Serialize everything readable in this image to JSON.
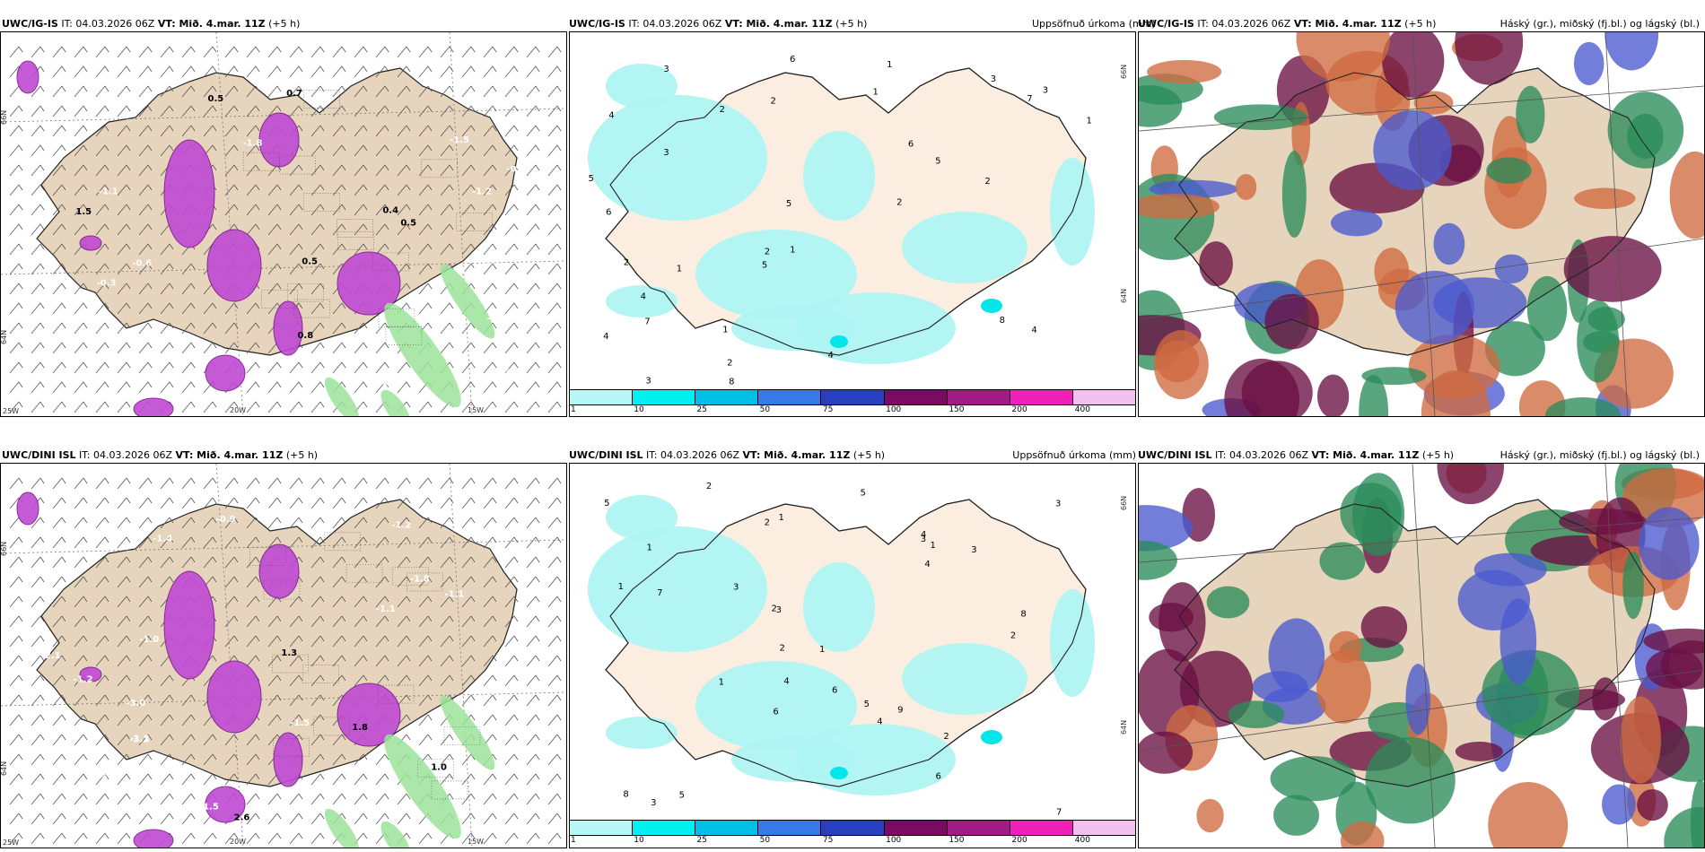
{
  "colors": {
    "land": "#e6d4bc",
    "land_light": "#fbeee0",
    "precip_light": "#aef4f2",
    "precip_mid": "#00e6ea",
    "snow_pink": "#c04ad4",
    "rain_green": "#9be39a",
    "cloud_high": "#6a1042",
    "cloud_mid": "#4a5ad0",
    "cloud_low": "#2a8c5a",
    "cloud_orange": "#cf6a40"
  },
  "scale": {
    "labels": [
      "1",
      "10",
      "25",
      "50",
      "75",
      "100",
      "150",
      "200",
      "400"
    ],
    "colors": [
      "#b4f8f8",
      "#00f0f0",
      "#00c0e8",
      "#3878e8",
      "#2840c0",
      "#7a0b62",
      "#a01a88",
      "#f020b8",
      "#f4c0f0"
    ]
  },
  "panels": [
    {
      "prefix": "UWC/IG-IS",
      "it_label": "IT:",
      "it_value": "04.03.2026 06Z",
      "vt_label": "VT: Mið. 4.mar. 11Z",
      "plus": "(+5 h)",
      "right": "",
      "lat_labels": [
        "66N",
        "64N"
      ],
      "lon_labels": [
        "25W",
        "20W",
        "15W"
      ],
      "values": [
        "-1.7",
        "-1.3",
        "-1.5",
        "-1.2",
        "-1.8",
        "-1.0",
        "-0.8",
        "-0.6",
        "0.5",
        "-1.6",
        "0.7",
        "0.4",
        "0.5",
        "-2.3",
        "0.8",
        "-1.1",
        "-0.3",
        "0.5",
        "-1.4",
        "1.5"
      ]
    },
    {
      "prefix": "UWC/IG-IS",
      "it_label": "IT:",
      "it_value": "04.03.2026 06Z",
      "vt_label": "VT: Mið. 4.mar. 11Z",
      "plus": "(+5 h)",
      "right": "Uppsöfnuð úrkoma (mm)",
      "lat_labels": [
        "66N",
        "64N"
      ],
      "values": [
        "1",
        "1",
        "1",
        "2",
        "2",
        "4",
        "3",
        "5",
        "6",
        "2",
        "8",
        "7",
        "4",
        "1",
        "3",
        "2",
        "5",
        "6",
        "7",
        "4",
        "3",
        "2",
        "1",
        "4",
        "5",
        "3",
        "2",
        "6",
        "1",
        "4",
        "3",
        "5",
        "2",
        "8"
      ]
    },
    {
      "prefix": "UWC/IG-IS",
      "it_label": "IT:",
      "it_value": "04.03.2026 06Z",
      "vt_label": "VT: Mið. 4.mar. 11Z",
      "plus": "(+5 h)",
      "right": "Háský (gr.), miðský (fj.bl.) og lágský (bl.)"
    },
    {
      "prefix": "UWC/DINI ISL",
      "it_label": "IT:",
      "it_value": "04.03.2026 06Z",
      "vt_label": "VT: Mið. 4.mar. 11Z",
      "plus": "(+5 h)",
      "right": "",
      "lat_labels": [
        "66N",
        "64N"
      ],
      "lon_labels": [
        "25W",
        "20W",
        "15W"
      ],
      "values": [
        "-1.1",
        "-1.2",
        "-1.4",
        "-1.8",
        "-1.5",
        "-1.0",
        "-3.0",
        "-1.3",
        "-1.1",
        "-1.1",
        "-1.2",
        "-1.6",
        "1.8",
        "1.3",
        "2.6",
        "-0.9",
        "1.0",
        "-2.1",
        "-3.1",
        "-1.5"
      ]
    },
    {
      "prefix": "UWC/DINI ISL",
      "it_label": "IT:",
      "it_value": "04.03.2026 06Z",
      "vt_label": "VT: Mið. 4.mar. 11Z",
      "plus": "(+5 h)",
      "right": "Uppsöfnuð úrkoma (mm)",
      "lat_labels": [
        "66N",
        "64N"
      ],
      "values": [
        "3",
        "1",
        "1",
        "2",
        "3",
        "5",
        "2",
        "4",
        "7",
        "6",
        "2",
        "8",
        "3",
        "1",
        "4",
        "5",
        "2",
        "6",
        "3",
        "7",
        "1",
        "5",
        "4",
        "2",
        "9",
        "3",
        "6",
        "1",
        "2",
        "4",
        "8",
        "5",
        "3",
        "1"
      ]
    },
    {
      "prefix": "UWC/DINI ISL",
      "it_label": "IT:",
      "it_value": "04.03.2026 06Z",
      "vt_label": "VT: Mið. 4.mar. 11Z",
      "plus": "(+5 h)",
      "right": "Háský (gr.), miðský (fj.bl.) og lágský (bl.)"
    }
  ]
}
